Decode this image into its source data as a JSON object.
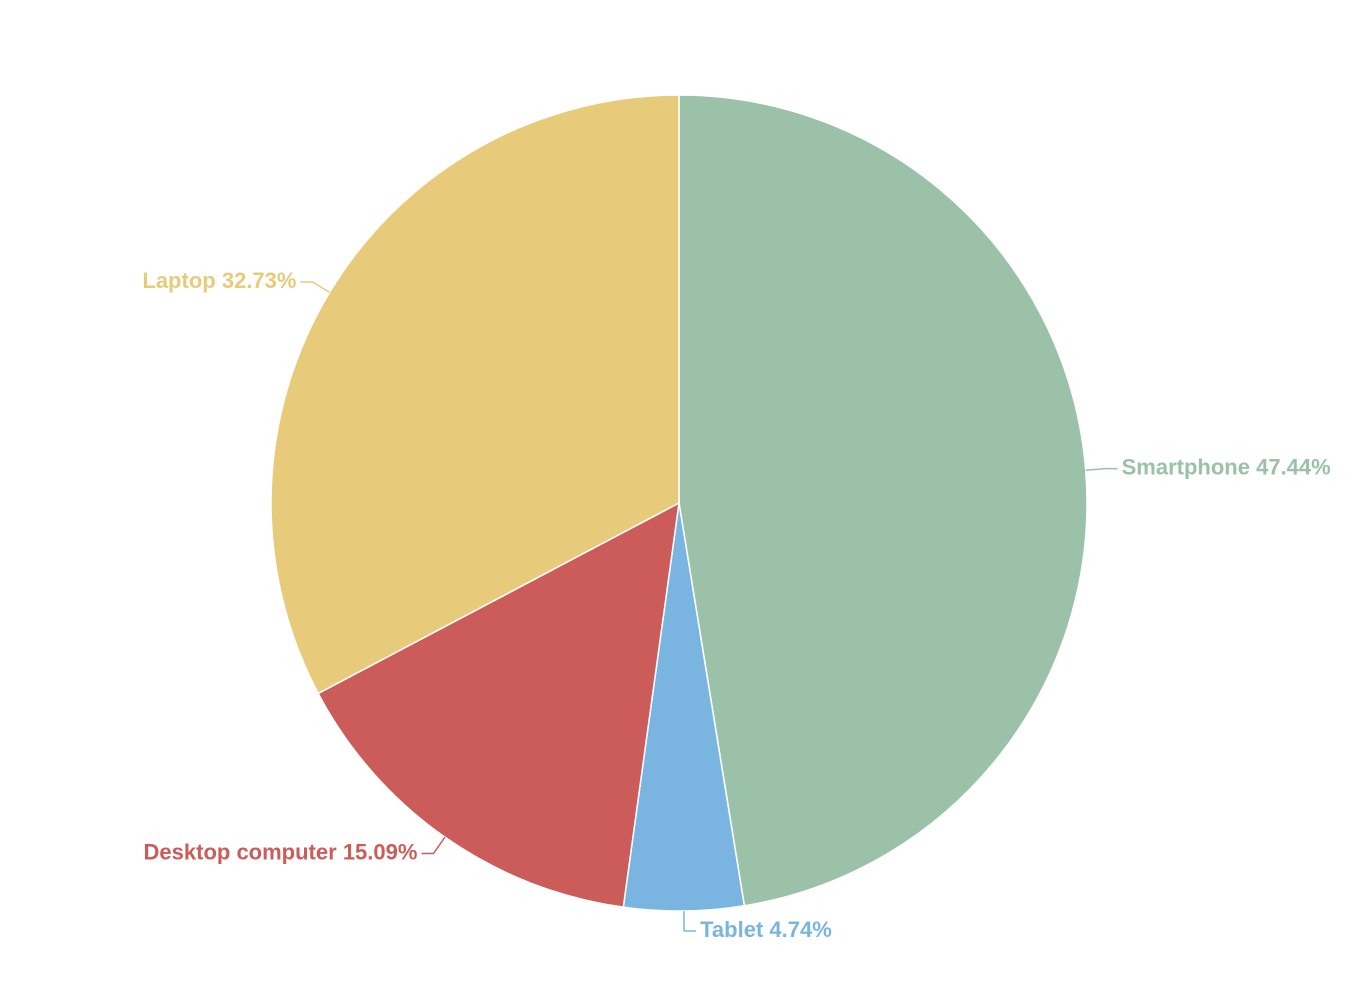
{
  "chart_data": {
    "type": "pie",
    "categories": [
      "Smartphone",
      "Tablet",
      "Desktop computer",
      "Laptop"
    ],
    "values": [
      47.44,
      4.74,
      15.09,
      32.73
    ],
    "value_labels": [
      "47.44%",
      "4.74%",
      "15.09%",
      "32.73%"
    ],
    "colors": [
      "#9bc2a9",
      "#7ab5e1",
      "#cc5c5a",
      "#e8cb7a"
    ]
  }
}
